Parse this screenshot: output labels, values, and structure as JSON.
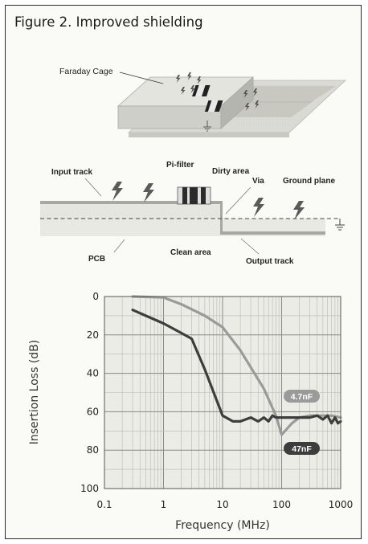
{
  "figure": {
    "title": "Figure 2.  Improved shielding"
  },
  "cage_diagram": {
    "label": "Faraday Cage"
  },
  "cross_section": {
    "labels": {
      "input_track": "Input track",
      "pi_filter": "Pi-filter",
      "dirty_area": "Dirty area",
      "via": "Via",
      "ground_plane": "Ground plane",
      "pcb": "PCB",
      "clean_area": "Clean area",
      "output_track": "Output track"
    }
  },
  "chart_data": {
    "type": "line",
    "xlabel": "Frequency (MHz)",
    "ylabel": "Insertion Loss (dB)",
    "x_scale": "log",
    "xlim": [
      0.1,
      1000
    ],
    "ylim": [
      0,
      100
    ],
    "y_inverted": true,
    "x_ticks": [
      "0.1",
      "1",
      "10",
      "100",
      "1000"
    ],
    "y_ticks": [
      "0",
      "20",
      "40",
      "60",
      "80",
      "100"
    ],
    "grid": true,
    "series": [
      {
        "name": "4.7nF",
        "color": "#9a9a9a",
        "x": [
          0.3,
          1,
          2,
          5,
          10,
          20,
          50,
          80,
          100,
          150,
          200,
          300,
          500,
          700,
          1000
        ],
        "y": [
          0,
          0.5,
          4,
          10,
          16,
          28,
          48,
          62,
          72,
          66,
          63,
          62,
          62,
          62,
          63
        ]
      },
      {
        "name": "47nF",
        "color": "#3d3d3d",
        "x": [
          0.3,
          0.5,
          1,
          2,
          3,
          5,
          10,
          15,
          20,
          30,
          40,
          50,
          60,
          70,
          80,
          100,
          200,
          300,
          400,
          500,
          600,
          700,
          800,
          900,
          1000
        ],
        "y": [
          7,
          10,
          14,
          19,
          22,
          38,
          62,
          65,
          65,
          63,
          65,
          63,
          65,
          62,
          63,
          63,
          63,
          63,
          62,
          64,
          62,
          66,
          63,
          66,
          65
        ]
      }
    ]
  }
}
